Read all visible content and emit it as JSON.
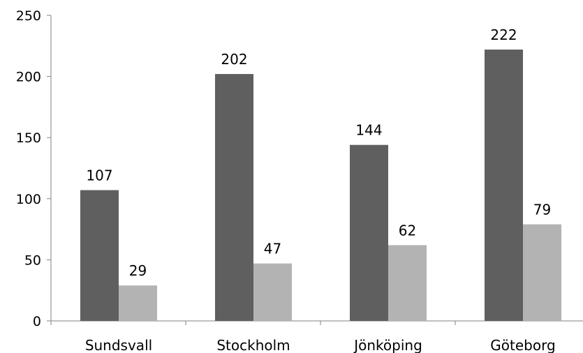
{
  "chart_data": {
    "type": "bar",
    "categories": [
      "Sundsvall",
      "Stockholm",
      "Jönköping",
      "Göteborg"
    ],
    "series": [
      {
        "values": [
          107,
          202,
          144,
          222
        ],
        "color": "#5f5f5f"
      },
      {
        "values": [
          29,
          47,
          62,
          79
        ],
        "color": "#b3b3b3"
      }
    ],
    "ylim": [
      0,
      250
    ],
    "yticks": [
      0,
      50,
      100,
      150,
      200,
      250
    ],
    "grid": false,
    "data_labels": true,
    "axis_color": "#808080"
  }
}
